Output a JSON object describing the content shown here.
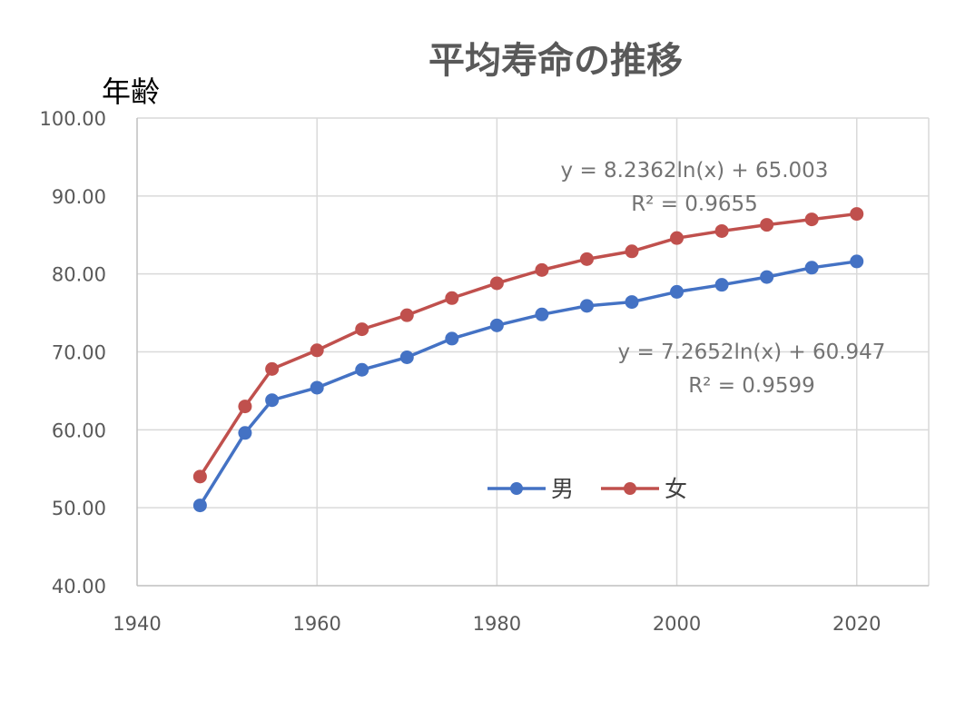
{
  "chart_data": {
    "type": "line",
    "title": "平均寿命の推移",
    "ylabel": "年齢",
    "xlabel": "",
    "xlim": [
      1940,
      2028
    ],
    "ylim": [
      40,
      100
    ],
    "xticks": [
      1940,
      1960,
      1980,
      2000,
      2020
    ],
    "xtick_labels": [
      "1940",
      "1960",
      "1980",
      "2000",
      "2020"
    ],
    "yticks": [
      40,
      50,
      60,
      70,
      80,
      90,
      100
    ],
    "ytick_labels": [
      "40.00",
      "50.00",
      "60.00",
      "70.00",
      "80.00",
      "90.00",
      "100.00"
    ],
    "grid": true,
    "legend_position": "center-bottom",
    "series": [
      {
        "name": "男",
        "color": "#4472c4",
        "x": [
          1947,
          1952,
          1955,
          1960,
          1965,
          1970,
          1975,
          1980,
          1985,
          1990,
          1995,
          2000,
          2005,
          2010,
          2015,
          2020
        ],
        "y": [
          50.3,
          59.6,
          63.8,
          65.4,
          67.7,
          69.3,
          71.7,
          73.4,
          74.8,
          75.9,
          76.4,
          77.7,
          78.6,
          79.6,
          80.8,
          81.6
        ]
      },
      {
        "name": "女",
        "color": "#c0504d",
        "x": [
          1947,
          1952,
          1955,
          1960,
          1965,
          1970,
          1975,
          1980,
          1985,
          1990,
          1995,
          2000,
          2005,
          2010,
          2015,
          2020
        ],
        "y": [
          54.0,
          63.0,
          67.8,
          70.2,
          72.9,
          74.7,
          76.9,
          78.8,
          80.5,
          81.9,
          82.9,
          84.6,
          85.5,
          86.3,
          87.0,
          87.7
        ]
      }
    ],
    "annotations": [
      {
        "series": "女",
        "equation": "y = 8.2362ln(x) + 65.003",
        "r2": "R² = 0.9655"
      },
      {
        "series": "男",
        "equation": "y = 7.2652ln(x) + 60.947",
        "r2": "R² = 0.9599"
      }
    ]
  }
}
